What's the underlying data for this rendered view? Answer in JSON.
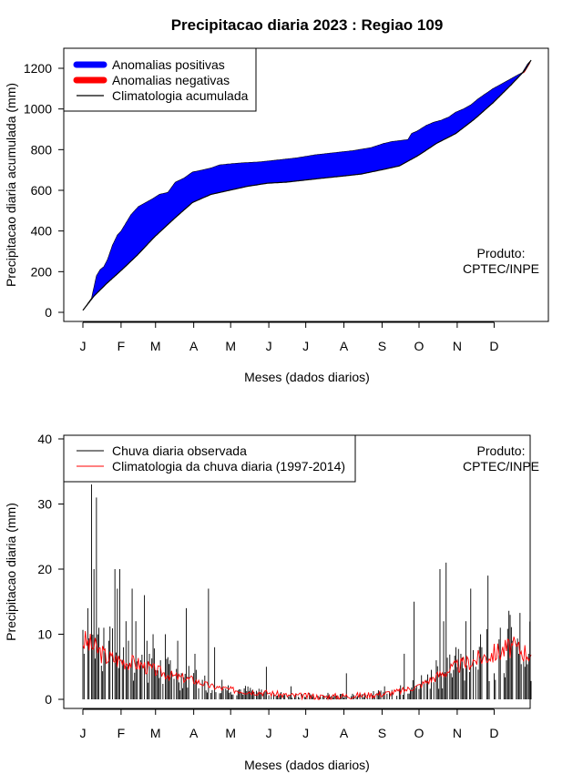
{
  "title": "Precipitacao diaria 2023 : Regiao 109",
  "months": [
    "J",
    "F",
    "M",
    "A",
    "M",
    "J",
    "J",
    "A",
    "S",
    "O",
    "N",
    "D"
  ],
  "xlabel": "Meses (dados diarios)",
  "producer": {
    "line1": "Produto:",
    "line2": "CPTEC/INPE"
  },
  "colors": {
    "positive": "#0000ff",
    "negative": "#ff0000",
    "climatology_line": "#000000",
    "observed_bars": "#000000",
    "climatology_daily": "#ff0000"
  },
  "chart_data": [
    {
      "type": "area",
      "ylabel": "Precipitacao diaria acumulada (mm)",
      "xlabel": "Meses (dados diarios)",
      "ylim": [
        0,
        1300
      ],
      "yticks": [
        0,
        200,
        400,
        600,
        800,
        1000,
        1200
      ],
      "xlim_days": [
        -5,
        370
      ],
      "legend": [
        "Anomalias positivas",
        "Anomalias negativas",
        "Climatologia acumulada"
      ],
      "legend_position": "top-left",
      "climatology_cumulative": {
        "days": [
          1,
          10,
          20,
          31,
          45,
          59,
          75,
          90,
          105,
          120,
          135,
          151,
          166,
          181,
          196,
          212,
          227,
          243,
          258,
          273,
          288,
          304,
          319,
          334,
          349,
          360,
          365
        ],
        "values": [
          10,
          80,
          140,
          200,
          280,
          370,
          460,
          540,
          580,
          600,
          620,
          635,
          640,
          650,
          660,
          670,
          680,
          700,
          720,
          770,
          830,
          880,
          950,
          1030,
          1120,
          1190,
          1240
        ]
      },
      "observed_cumulative": {
        "days": [
          1,
          8,
          12,
          15,
          18,
          21,
          25,
          29,
          32,
          36,
          40,
          46,
          52,
          58,
          63,
          70,
          76,
          83,
          90,
          98,
          105,
          112,
          120,
          130,
          145,
          160,
          175,
          190,
          205,
          220,
          235,
          245,
          252,
          259,
          265,
          268,
          272,
          276,
          280,
          286,
          292,
          298,
          304,
          310,
          316,
          322,
          328,
          334,
          340,
          346,
          352,
          358,
          362,
          365
        ],
        "values": [
          10,
          70,
          180,
          210,
          225,
          260,
          330,
          380,
          400,
          440,
          480,
          520,
          540,
          560,
          580,
          590,
          640,
          660,
          690,
          700,
          710,
          725,
          730,
          735,
          740,
          750,
          760,
          775,
          785,
          795,
          810,
          830,
          840,
          845,
          850,
          880,
          890,
          905,
          920,
          935,
          945,
          960,
          985,
          1000,
          1020,
          1050,
          1075,
          1100,
          1120,
          1140,
          1160,
          1180,
          1220,
          1240
        ]
      }
    },
    {
      "type": "bar",
      "ylabel": "Precipitacao diaria (mm)",
      "xlabel": "Meses (dados diarios)",
      "ylim": [
        0,
        40
      ],
      "yticks": [
        0,
        10,
        20,
        30,
        40
      ],
      "legend": [
        "Chuva diaria observada",
        "Climatologia da chuva diaria (1997-2014)"
      ],
      "legend_position": "top-left",
      "observed_peaks": {
        "days": [
          2,
          5,
          8,
          10,
          12,
          14,
          18,
          22,
          27,
          29,
          31,
          34,
          36,
          38,
          41,
          44,
          48,
          51,
          53,
          55,
          58,
          64,
          68,
          72,
          78,
          85,
          92,
          98,
          103,
          108,
          114,
          120,
          130,
          150,
          170,
          185,
          200,
          215,
          230,
          240,
          246,
          262,
          270,
          280,
          288,
          291,
          294,
          296,
          300,
          304,
          308,
          312,
          316,
          320,
          325,
          330,
          335,
          340,
          345,
          350,
          355,
          360,
          363
        ],
        "values": [
          7,
          14,
          33,
          20,
          31,
          11,
          11,
          9,
          20,
          17,
          20,
          8,
          12,
          9,
          17,
          12,
          6,
          16,
          9,
          7,
          10,
          6,
          10,
          6,
          9,
          14,
          7,
          3,
          17,
          8,
          3,
          1,
          1,
          5,
          2,
          1,
          1,
          4,
          1,
          1,
          2,
          7,
          15,
          3,
          6,
          20,
          12,
          21,
          4,
          8,
          7,
          12,
          17,
          5,
          8,
          19,
          4,
          11,
          6,
          9,
          7,
          5,
          7
        ]
      },
      "climatology_daily": {
        "days": [
          1,
          10,
          20,
          31,
          45,
          59,
          75,
          90,
          105,
          120,
          135,
          151,
          166,
          181,
          196,
          212,
          227,
          243,
          258,
          273,
          288,
          304,
          319,
          334,
          349,
          365
        ],
        "values": [
          9,
          8,
          6.5,
          6,
          5.5,
          4.5,
          3.5,
          3,
          2,
          1.5,
          1.2,
          1,
          0.6,
          0.5,
          0.4,
          0.5,
          0.6,
          0.8,
          1.2,
          2,
          3.5,
          5,
          6,
          7,
          8,
          7
        ]
      }
    }
  ]
}
